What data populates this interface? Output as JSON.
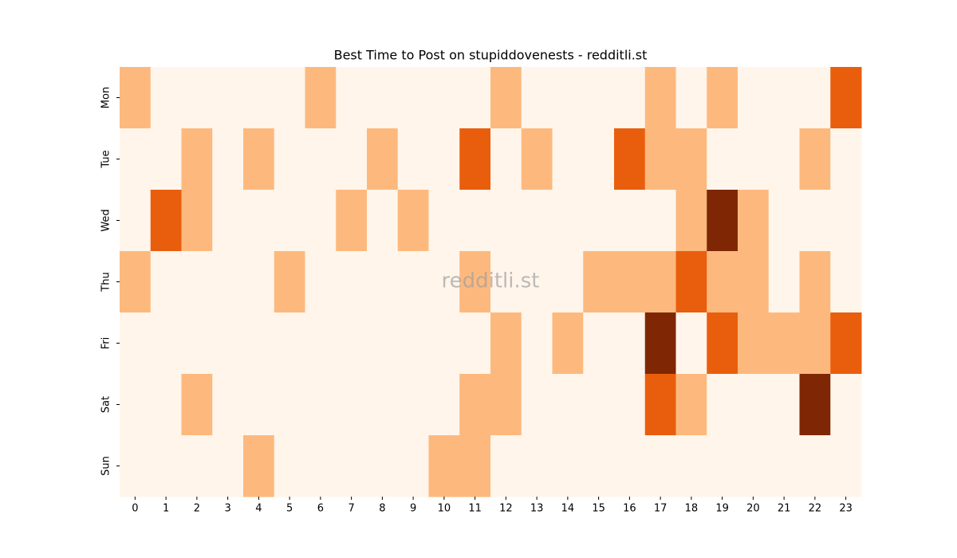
{
  "chart_data": {
    "type": "heatmap",
    "title": "Best Time to Post on stupiddovenests - redditli.st",
    "watermark": "redditli.st",
    "categories": [
      "0",
      "1",
      "2",
      "3",
      "4",
      "5",
      "6",
      "7",
      "8",
      "9",
      "10",
      "11",
      "12",
      "13",
      "14",
      "15",
      "16",
      "17",
      "18",
      "19",
      "20",
      "21",
      "22",
      "23"
    ],
    "rows": [
      "Mon",
      "Tue",
      "Wed",
      "Thu",
      "Fri",
      "Sat",
      "Sun"
    ],
    "values": [
      [
        1,
        0,
        0,
        0,
        0,
        0,
        1,
        0,
        0,
        0,
        0,
        0,
        1,
        0,
        0,
        0,
        0,
        1,
        0,
        1,
        0,
        0,
        0,
        2
      ],
      [
        0,
        0,
        1,
        0,
        1,
        0,
        0,
        0,
        1,
        0,
        0,
        2,
        0,
        1,
        0,
        0,
        2,
        1,
        1,
        0,
        0,
        0,
        1,
        0
      ],
      [
        0,
        2,
        1,
        0,
        0,
        0,
        0,
        1,
        0,
        1,
        0,
        0,
        0,
        0,
        0,
        0,
        0,
        0,
        1,
        3,
        1,
        0,
        0,
        0
      ],
      [
        1,
        0,
        0,
        0,
        0,
        1,
        0,
        0,
        0,
        0,
        0,
        1,
        0,
        0,
        0,
        1,
        1,
        1,
        2,
        1,
        1,
        0,
        1,
        0
      ],
      [
        0,
        0,
        0,
        0,
        0,
        0,
        0,
        0,
        0,
        0,
        0,
        0,
        1,
        0,
        1,
        0,
        0,
        3,
        0,
        2,
        1,
        1,
        1,
        2
      ],
      [
        0,
        0,
        1,
        0,
        0,
        0,
        0,
        0,
        0,
        0,
        0,
        1,
        1,
        0,
        0,
        0,
        0,
        2,
        1,
        0,
        0,
        0,
        3,
        0
      ],
      [
        0,
        0,
        0,
        0,
        1,
        0,
        0,
        0,
        0,
        0,
        1,
        1,
        0,
        0,
        0,
        0,
        0,
        0,
        0,
        0,
        0,
        0,
        0,
        0
      ]
    ],
    "zlim": [
      0,
      3
    ],
    "colors": [
      "#fff5eb",
      "#fdb97d",
      "#e95e0d",
      "#7f2704"
    ]
  }
}
